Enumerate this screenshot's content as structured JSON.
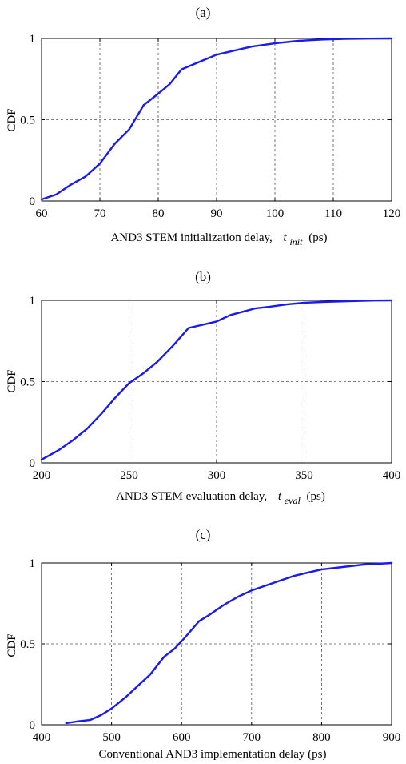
{
  "chart_data": [
    {
      "type": "line",
      "panel_label": "(a)",
      "xlabel_main": "AND3 STEM initialization delay,",
      "xlabel_var": "t",
      "xlabel_sub": "init",
      "xlabel_unit": "(ps)",
      "ylabel": "CDF",
      "xlim": [
        60,
        120
      ],
      "ylim": [
        0,
        1
      ],
      "xticks": [
        60,
        70,
        80,
        90,
        100,
        110,
        120
      ],
      "xtick_labels": [
        "60",
        "70",
        "80",
        "90",
        "100",
        "110",
        "120"
      ],
      "yticks": [
        0,
        0.5,
        1
      ],
      "ytick_labels": [
        "0",
        "0.5",
        "1"
      ],
      "grid": true,
      "color": "#1a1aee",
      "series": [
        {
          "x": [
            60,
            62.5,
            65,
            67.5,
            70,
            72.5,
            75,
            77.5,
            80,
            82,
            84,
            86,
            88,
            90,
            93,
            96,
            100,
            104,
            108,
            112,
            116,
            120
          ],
          "y": [
            0.01,
            0.04,
            0.1,
            0.15,
            0.23,
            0.35,
            0.44,
            0.59,
            0.66,
            0.72,
            0.81,
            0.84,
            0.87,
            0.9,
            0.925,
            0.95,
            0.97,
            0.985,
            0.993,
            0.997,
            0.999,
            1.0
          ]
        }
      ]
    },
    {
      "type": "line",
      "panel_label": "(b)",
      "xlabel_main": "AND3 STEM evaluation delay,",
      "xlabel_var": "t",
      "xlabel_sub": "eval",
      "xlabel_unit": "(ps)",
      "ylabel": "CDF",
      "xlim": [
        200,
        400
      ],
      "ylim": [
        0,
        1
      ],
      "xticks": [
        200,
        250,
        300,
        350,
        400
      ],
      "xtick_labels": [
        "200",
        "250",
        "300",
        "350",
        "400"
      ],
      "yticks": [
        0,
        0.5,
        1
      ],
      "ytick_labels": [
        "0",
        "0.5",
        "1"
      ],
      "grid": true,
      "color": "#1a1aee",
      "series": [
        {
          "x": [
            200,
            205,
            210,
            218,
            226,
            234,
            242,
            250,
            258,
            266,
            275,
            284,
            292,
            300,
            308,
            315,
            322,
            330,
            340,
            350,
            360,
            375,
            390,
            400
          ],
          "y": [
            0.02,
            0.05,
            0.08,
            0.14,
            0.21,
            0.3,
            0.4,
            0.49,
            0.55,
            0.62,
            0.72,
            0.83,
            0.85,
            0.87,
            0.91,
            0.93,
            0.95,
            0.96,
            0.975,
            0.985,
            0.99,
            0.995,
            0.999,
            1.0
          ]
        }
      ]
    },
    {
      "type": "line",
      "panel_label": "(c)",
      "xlabel_main": "Conventional AND3 implementation delay (ps)",
      "xlabel_var": "",
      "xlabel_sub": "",
      "xlabel_unit": "",
      "ylabel": "CDF",
      "xlim": [
        400,
        900
      ],
      "ylim": [
        0,
        1
      ],
      "xticks": [
        400,
        500,
        600,
        700,
        800,
        900
      ],
      "xtick_labels": [
        "400",
        "500",
        "600",
        "700",
        "800",
        "900"
      ],
      "yticks": [
        0,
        0.5,
        1
      ],
      "ytick_labels": [
        "0",
        "0.5",
        "1"
      ],
      "grid": true,
      "color": "#1a1aee",
      "series": [
        {
          "x": [
            435,
            450,
            470,
            485,
            500,
            520,
            540,
            555,
            575,
            590,
            605,
            625,
            640,
            660,
            680,
            700,
            720,
            740,
            760,
            780,
            800,
            830,
            860,
            880,
            900
          ],
          "y": [
            0.01,
            0.02,
            0.03,
            0.06,
            0.1,
            0.17,
            0.25,
            0.31,
            0.42,
            0.47,
            0.54,
            0.64,
            0.68,
            0.74,
            0.79,
            0.83,
            0.86,
            0.89,
            0.92,
            0.94,
            0.96,
            0.975,
            0.99,
            0.995,
            1.0
          ]
        }
      ]
    }
  ]
}
